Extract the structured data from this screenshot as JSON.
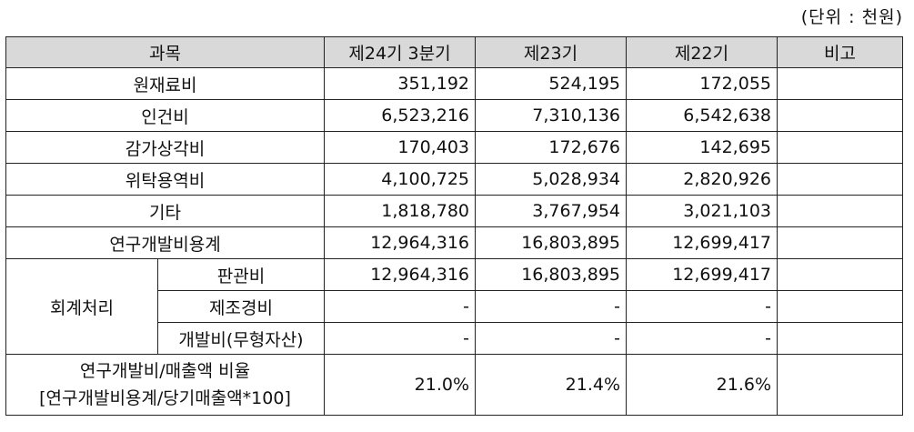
{
  "unit_note": "(단위 : 천원)",
  "headers": {
    "item": "과목",
    "col1": "제24기 3분기",
    "col2": "제23기",
    "col3": "제22기",
    "note": "비고"
  },
  "rows": [
    {
      "label": "원재료비",
      "v1": "351,192",
      "v2": "524,195",
      "v3": "172,055"
    },
    {
      "label": "인건비",
      "v1": "6,523,216",
      "v2": "7,310,136",
      "v3": "6,542,638"
    },
    {
      "label": "감가상각비",
      "v1": "170,403",
      "v2": "172,676",
      "v3": "142,695"
    },
    {
      "label": "위탁용역비",
      "v1": "4,100,725",
      "v2": "5,028,934",
      "v3": "2,820,926"
    },
    {
      "label": "기타",
      "v1": "1,818,780",
      "v2": "3,767,954",
      "v3": "3,021,103"
    },
    {
      "label": "연구개발비용계",
      "v1": "12,964,316",
      "v2": "16,803,895",
      "v3": "12,699,417"
    }
  ],
  "accounting": {
    "group_label": "회계처리",
    "items": [
      {
        "label": "판관비",
        "v1": "12,964,316",
        "v2": "16,803,895",
        "v3": "12,699,417"
      },
      {
        "label": "제조경비",
        "v1": "-",
        "v2": "-",
        "v3": "-"
      },
      {
        "label": "개발비(무형자산)",
        "v1": "-",
        "v2": "-",
        "v3": "-"
      }
    ]
  },
  "ratio": {
    "label_line1": "연구개발비/매출액 비율",
    "label_line2": "[연구개발비용계/당기매출액*100]",
    "v1": "21.0%",
    "v2": "21.4%",
    "v3": "21.6%"
  }
}
